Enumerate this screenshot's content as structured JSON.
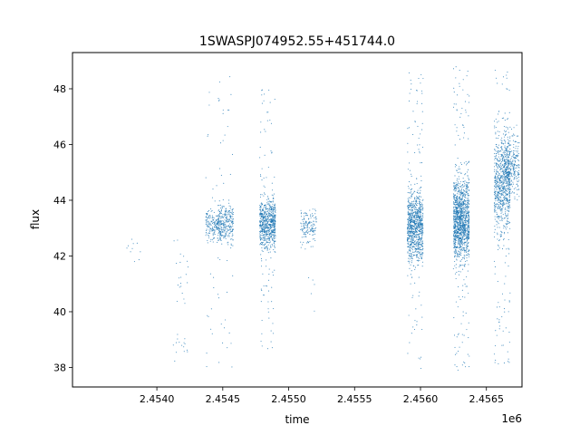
{
  "chart_data": {
    "type": "scatter",
    "title": "1SWASPJ074952.55+451744.0",
    "xlabel": "time",
    "ylabel": "flux",
    "x_offset_label": "1e6",
    "xlim": [
      2.45336,
      2.45677
    ],
    "ylim": [
      37.3,
      49.3
    ],
    "x_ticks": [
      2.454,
      2.4545,
      2.455,
      2.4555,
      2.456,
      2.4565
    ],
    "x_tick_labels": [
      "2.4540",
      "2.4545",
      "2.4550",
      "2.4555",
      "2.4560",
      "2.4565"
    ],
    "y_ticks": [
      38,
      40,
      42,
      44,
      46,
      48
    ],
    "y_tick_labels": [
      "38",
      "40",
      "42",
      "44",
      "46",
      "48"
    ],
    "grid": false,
    "marker_color": "#1f77b4",
    "clusters": [
      {
        "x": 2.45383,
        "center": 42.2,
        "core_spread": 0.25,
        "min": 41.8,
        "max": 42.6,
        "count": 10
      },
      {
        "x": 2.45418,
        "center": 41.3,
        "core_spread": 0.6,
        "min": 40.3,
        "max": 42.7,
        "count": 20
      },
      {
        "x": 2.45418,
        "center": 38.7,
        "core_spread": 0.35,
        "min": 38.0,
        "max": 39.3,
        "count": 15
      },
      {
        "x": 2.45443,
        "center": 43.1,
        "core_spread": 0.3,
        "min": 37.9,
        "max": 48.7,
        "count": 200
      },
      {
        "x": 2.45452,
        "center": 43.15,
        "core_spread": 0.35,
        "min": 38.0,
        "max": 48.7,
        "count": 300
      },
      {
        "x": 2.45484,
        "center": 43.2,
        "core_spread": 0.45,
        "min": 38.5,
        "max": 48.2,
        "count": 750
      },
      {
        "x": 2.45515,
        "center": 43.0,
        "core_spread": 0.35,
        "min": 39.8,
        "max": 44.2,
        "count": 150
      },
      {
        "x": 2.45596,
        "center": 43.1,
        "core_spread": 0.6,
        "min": 37.9,
        "max": 48.6,
        "count": 950
      },
      {
        "x": 2.45631,
        "center": 43.3,
        "core_spread": 0.75,
        "min": 37.9,
        "max": 48.8,
        "count": 1300
      },
      {
        "x": 2.45662,
        "center": 44.6,
        "core_spread": 0.9,
        "min": 38.0,
        "max": 48.7,
        "count": 800
      },
      {
        "x": 2.45669,
        "center": 45.2,
        "core_spread": 0.5,
        "min": 44.0,
        "max": 46.8,
        "count": 300
      }
    ]
  }
}
